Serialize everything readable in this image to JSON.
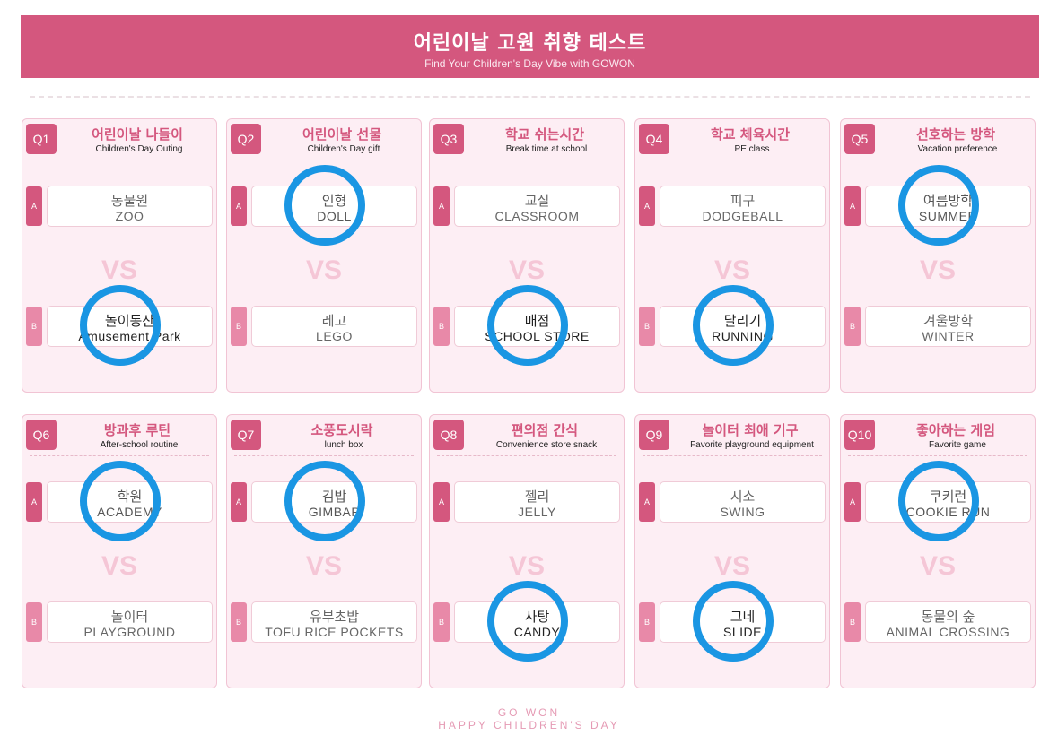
{
  "header": {
    "title": "어린이날 고원 취향 테스트",
    "subtitle": "Find Your Children's Day Vibe with GOWON"
  },
  "vs_label": "VS",
  "option_labels": {
    "a": "A",
    "b": "B"
  },
  "questions": [
    {
      "num": "Q1",
      "title": "어린이날 나들이",
      "subtitle": "Children's Day Outing",
      "a": {
        "ko": "동물원",
        "en": "ZOO"
      },
      "b": {
        "ko": "놀이동산",
        "en": "Amusement Park"
      },
      "selected": "b"
    },
    {
      "num": "Q2",
      "title": "어린이날 선물",
      "subtitle": "Children's Day gift",
      "a": {
        "ko": "인형",
        "en": "DOLL"
      },
      "b": {
        "ko": "레고",
        "en": "LEGO"
      },
      "selected": "a"
    },
    {
      "num": "Q3",
      "title": "학교 쉬는시간",
      "subtitle": "Break time at school",
      "a": {
        "ko": "교실",
        "en": "CLASSROOM"
      },
      "b": {
        "ko": "매점",
        "en": "SCHOOL STORE"
      },
      "selected": "b"
    },
    {
      "num": "Q4",
      "title": "학교 체육시간",
      "subtitle": "PE class",
      "a": {
        "ko": "피구",
        "en": "DODGEBALL"
      },
      "b": {
        "ko": "달리기",
        "en": "RUNNING"
      },
      "selected": "b"
    },
    {
      "num": "Q5",
      "title": "선호하는 방학",
      "subtitle": "Vacation preference",
      "a": {
        "ko": "여름방학",
        "en": "SUMMER"
      },
      "b": {
        "ko": "겨울방학",
        "en": "WINTER"
      },
      "selected": "a"
    },
    {
      "num": "Q6",
      "title": "방과후 루틴",
      "subtitle": "After-school routine",
      "a": {
        "ko": "학원",
        "en": "ACADEMY"
      },
      "b": {
        "ko": "놀이터",
        "en": "PLAYGROUND"
      },
      "selected": "a"
    },
    {
      "num": "Q7",
      "title": "소풍도시락",
      "subtitle": "lunch box",
      "a": {
        "ko": "김밥",
        "en": "GIMBAP"
      },
      "b": {
        "ko": "유부초밥",
        "en": "TOFU RICE POCKETS"
      },
      "selected": "a"
    },
    {
      "num": "Q8",
      "title": "편의점 간식",
      "subtitle": "Convenience store snack",
      "a": {
        "ko": "젤리",
        "en": "JELLY"
      },
      "b": {
        "ko": "사탕",
        "en": "CANDY"
      },
      "selected": "b"
    },
    {
      "num": "Q9",
      "title": "놀이터 최애 기구",
      "subtitle": "Favorite playground equipment",
      "a": {
        "ko": "시소",
        "en": "SWING"
      },
      "b": {
        "ko": "그네",
        "en": "SLIDE"
      },
      "selected": "b"
    },
    {
      "num": "Q10",
      "title": "좋아하는 게임",
      "subtitle": "Favorite game",
      "a": {
        "ko": "쿠키런",
        "en": "COOKIE RUN"
      },
      "b": {
        "ko": "동물의 숲",
        "en": "ANIMAL CROSSING"
      },
      "selected": "a"
    }
  ],
  "footer": {
    "line1": "GO WON",
    "line2": "HAPPY CHILDREN'S DAY"
  },
  "colors": {
    "brand_pink": "#d4577e",
    "card_bg": "#fdeef4",
    "circle_blue": "#1a96e3",
    "vs_pink": "#f5c6d6"
  }
}
